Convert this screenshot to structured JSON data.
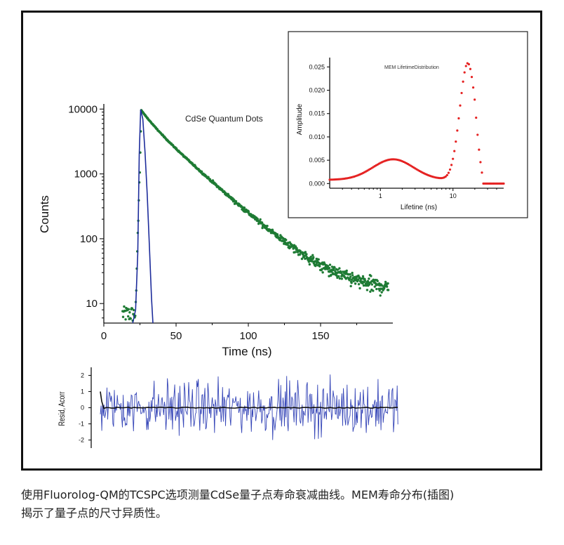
{
  "figure": {
    "caption_line1": "使用Fluorolog-QM的TCSPC选项测量CdSe量子点寿命衰减曲线。MEM寿命分布(插图)",
    "caption_line2": "揭示了量子点的尺寸异质性。"
  },
  "colors": {
    "fit_green": "#1e7b34",
    "irf_blue": "#1d2c9b",
    "residual_blue": "#3747b8",
    "autocorr_black": "#111111",
    "mem_red": "#e52222"
  },
  "chart_data": [
    {
      "id": "decay",
      "type": "scatter",
      "title": "CdSe Quantum Dots",
      "xlabel": "Time (ns)",
      "ylabel": "Counts",
      "xlim": [
        0,
        200
      ],
      "ylim": [
        5,
        12000
      ],
      "yscale": "log",
      "xticks": [
        "0",
        "50",
        "100",
        "150"
      ],
      "xtick_values": [
        0,
        50,
        100,
        150
      ],
      "yticks": [
        "10",
        "100",
        "1000",
        "10000"
      ],
      "ytick_values": [
        10,
        100,
        1000,
        10000
      ],
      "series": [
        {
          "name": "Decay counts",
          "style": "green dots",
          "peak_time": 26,
          "peak_counts": 9500,
          "tau_fast": 8,
          "amp_fast": 0.28,
          "tau_slow": 22,
          "amp_slow": 0.72,
          "offset": 15
        },
        {
          "name": "IRF",
          "style": "blue line",
          "points": [
            [
              20,
              5
            ],
            [
              22,
              8
            ],
            [
              23.5,
              60
            ],
            [
              24.5,
              2000
            ],
            [
              25.5,
              9800
            ],
            [
              27,
              7000
            ],
            [
              28.5,
              2200
            ],
            [
              30,
              500
            ],
            [
              31.5,
              80
            ],
            [
              33,
              12
            ],
            [
              34,
              5
            ]
          ]
        }
      ],
      "annotations": [
        {
          "text": "CdSe Quantum Dots",
          "at_data": [
            60,
            7000
          ]
        }
      ]
    },
    {
      "id": "residuals",
      "type": "line",
      "ylabel": "Resid, Acorr",
      "xlim": [
        0,
        200
      ],
      "ylim": [
        -2.5,
        2.5
      ],
      "yticks": [
        "2",
        "1",
        "0",
        "-1",
        "-2"
      ],
      "ytick_values": [
        2,
        1,
        0,
        -1,
        -2
      ],
      "series": [
        {
          "name": "Residuals",
          "style": "blue noisy line",
          "amplitude": 1.3
        },
        {
          "name": "Autocorrelation",
          "style": "black line",
          "value_at_start": 1.0,
          "baseline": 0.0
        }
      ]
    },
    {
      "id": "mem-inset",
      "type": "scatter",
      "title": "MEM LifetimeDistribution",
      "xlabel": "Lifetine (ns)",
      "ylabel": "Amplitude",
      "xscale": "log",
      "xlim": [
        0.2,
        50
      ],
      "ylim": [
        -0.001,
        0.027
      ],
      "xticks": [
        "1",
        "10"
      ],
      "xtick_values": [
        1,
        10
      ],
      "yticks": [
        "0.000",
        "0.005",
        "0.010",
        "0.015",
        "0.020",
        "0.025"
      ],
      "ytick_values": [
        0,
        0.005,
        0.01,
        0.015,
        0.02,
        0.025
      ],
      "series": [
        {
          "name": "MEM distribution",
          "style": "red dots",
          "baseline": 0.0008,
          "peaks": [
            {
              "center_ns": 1.5,
              "amplitude": 0.0044,
              "log_width": 0.28
            },
            {
              "center_ns": 16,
              "amplitude": 0.025,
              "log_width": 0.11
            }
          ],
          "cutoff_ns": 26
        }
      ]
    }
  ]
}
